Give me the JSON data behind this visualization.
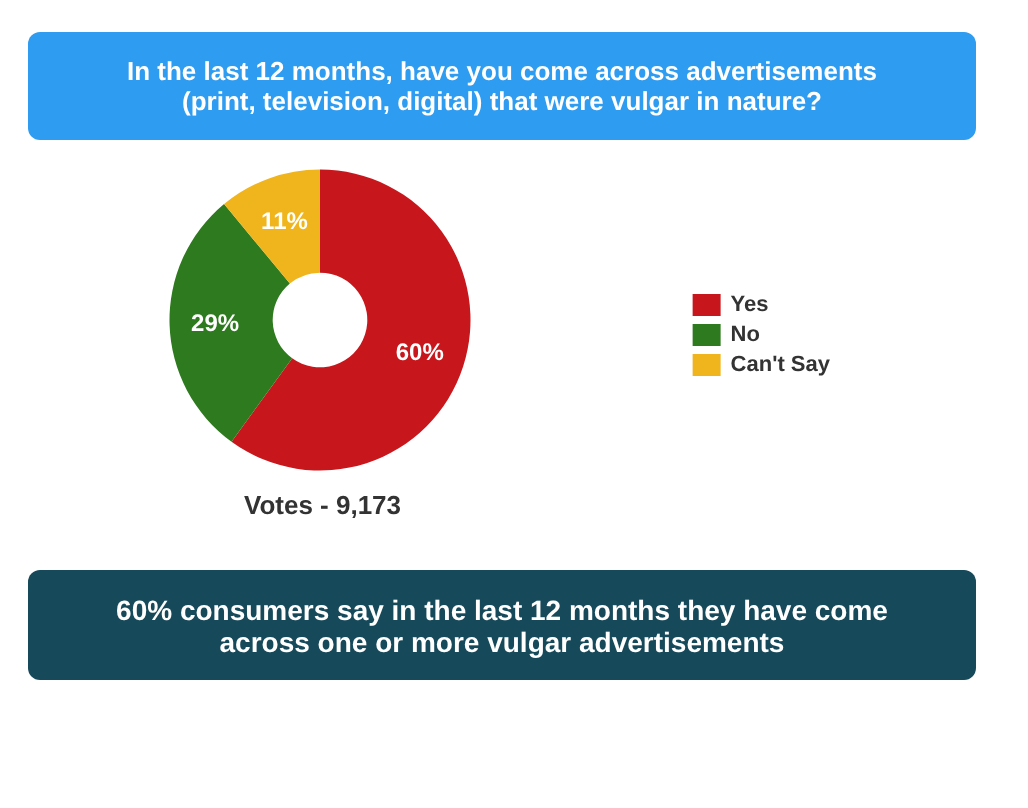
{
  "chart_data": {
    "type": "donut",
    "title": "In the last 12 months, have you come across advertisements (print, television, digital) that were vulgar in nature?",
    "categories": [
      "Yes",
      "No",
      "Can't Say"
    ],
    "values": [
      60,
      29,
      11
    ],
    "colors": [
      "#c8171c",
      "#2e7a1e",
      "#f0b41c"
    ],
    "value_labels": [
      "60%",
      "29%",
      "11%"
    ],
    "legend": "right",
    "annotations": [
      "Votes - 9,173",
      "60% consumers say in the last 12 months they have come across one or more vulgar advertisements"
    ]
  }
}
